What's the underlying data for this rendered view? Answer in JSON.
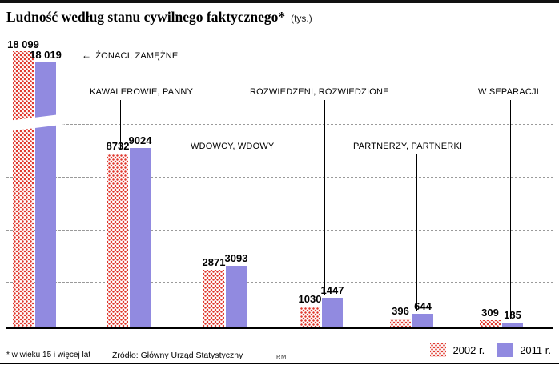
{
  "title": "Ludność według stanu cywilnego faktycznego*",
  "title_suffix": "(tys.)",
  "footnote": "* w wieku 15 i więcej lat",
  "source": "Źródło: Główny Urząd Statystyczny",
  "credit": "RM",
  "colors": {
    "red": "#e03a2f",
    "purple": "#918ae0"
  },
  "legend": [
    {
      "label": "2002 r.",
      "swatch": "red-dots"
    },
    {
      "label": "2011 r.",
      "swatch": "purple-solid"
    }
  ],
  "chart_data": {
    "type": "bar",
    "unit": "tys.",
    "title": "Ludność według stanu cywilnego faktycznego* (tys.)",
    "categories": [
      "ŻONACI, ZAMĘŻNE",
      "KAWALEROWIE, PANNY",
      "WDOWCY, WDOWY",
      "ROZWIEDZENI, ROZWIEDZIONE",
      "PARTNERZY, PARTNERKI",
      "W SEPARACJI"
    ],
    "series": [
      {
        "name": "2002 r.",
        "values": [
          18099,
          8732,
          2871,
          1030,
          396,
          309
        ]
      },
      {
        "name": "2011 r.",
        "values": [
          18019,
          9024,
          3093,
          1447,
          644,
          185
        ]
      }
    ],
    "value_labels": [
      [
        "18 099",
        "18 019"
      ],
      [
        "8732",
        "9024"
      ],
      [
        "2871",
        "3093"
      ],
      [
        "1030",
        "1447"
      ],
      [
        "396",
        "644"
      ],
      [
        "309",
        "185"
      ]
    ],
    "axis_break": {
      "category_index": 0,
      "note": "bars for ŻONACI, ZAMĘŻNE are broken (values exceed visible scale)"
    },
    "ylim": [
      0,
      9500
    ],
    "grid": "dashed-horizontal",
    "legend_position": "bottom-right"
  }
}
